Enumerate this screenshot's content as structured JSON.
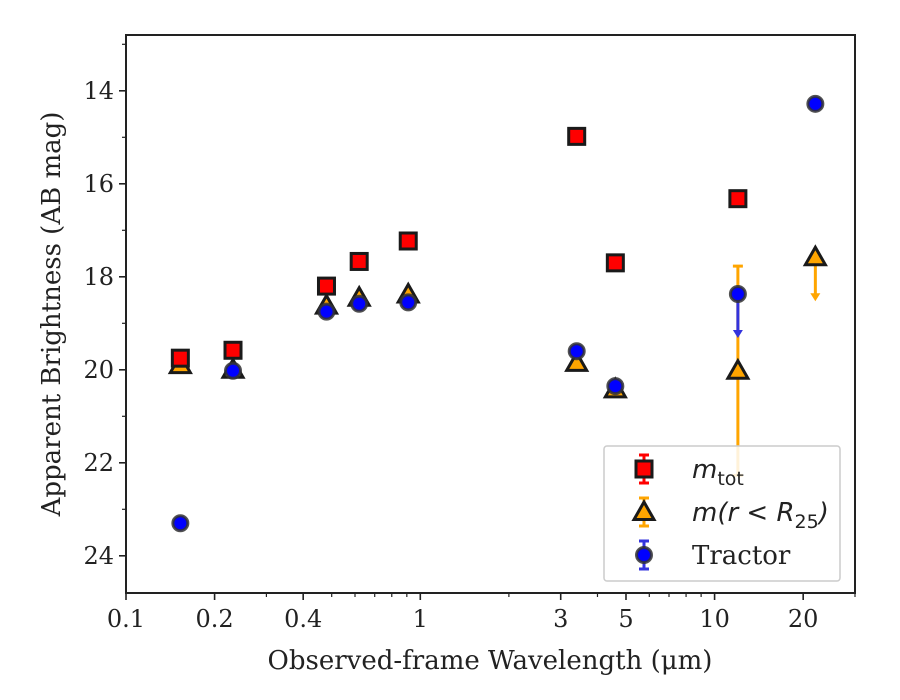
{
  "chart_data": {
    "type": "scatter",
    "title": "",
    "xlabel": "Observed-frame Wavelength (μm)",
    "ylabel": "Apparent Brightness (AB mag)",
    "xscale": "log",
    "xlim": [
      0.1,
      30
    ],
    "ylim": [
      24.8,
      12.8
    ],
    "y_inverted": true,
    "x_ticks": [
      0.1,
      0.2,
      0.4,
      1,
      3,
      5,
      10,
      20
    ],
    "x_tick_labels": [
      "0.1",
      "0.2",
      "0.4",
      "1",
      "3",
      "5",
      "10",
      "20"
    ],
    "y_ticks": [
      14,
      16,
      18,
      20,
      22,
      24
    ],
    "y_tick_labels": [
      "14",
      "16",
      "18",
      "20",
      "22",
      "24"
    ],
    "grid": false,
    "legend_placement": "lower-right",
    "legend_entries": [
      "m_tot",
      "m(r < R25)",
      "Tractor"
    ],
    "series": [
      {
        "name": "m_tot",
        "marker": "square",
        "color": "#ff0000",
        "edge_color": "#1a1a1a",
        "errbar_color": "#ff0000",
        "points": [
          {
            "x": 0.153,
            "y": 19.75
          },
          {
            "x": 0.231,
            "y": 19.58
          },
          {
            "x": 0.48,
            "y": 18.2
          },
          {
            "x": 0.62,
            "y": 17.67
          },
          {
            "x": 0.91,
            "y": 17.23
          },
          {
            "x": 3.4,
            "y": 14.98
          },
          {
            "x": 4.6,
            "y": 17.7
          },
          {
            "x": 12.0,
            "y": 16.32
          }
        ]
      },
      {
        "name": "m(r < R25)",
        "marker": "triangle",
        "color": "#ffa500",
        "edge_color": "#1a1a1a",
        "errbar_color": "#ffa500",
        "points": [
          {
            "x": 0.153,
            "y": 19.9
          },
          {
            "x": 0.231,
            "y": 20.0
          },
          {
            "x": 0.48,
            "y": 18.62
          },
          {
            "x": 0.62,
            "y": 18.45
          },
          {
            "x": 0.91,
            "y": 18.38
          },
          {
            "x": 3.4,
            "y": 19.85
          },
          {
            "x": 4.6,
            "y": 20.42
          },
          {
            "x": 12.0,
            "y": 20.02,
            "yerr": [
              2.25,
              2.25
            ]
          },
          {
            "x": 22.0,
            "y": 17.58,
            "upper_limit": true
          }
        ]
      },
      {
        "name": "Tractor",
        "marker": "circle",
        "color": "#0000ff",
        "edge_color": "#333333",
        "errbar_color": "#0000ff",
        "points": [
          {
            "x": 0.153,
            "y": 23.3
          },
          {
            "x": 0.231,
            "y": 20.02
          },
          {
            "x": 0.48,
            "y": 18.75
          },
          {
            "x": 0.62,
            "y": 18.58
          },
          {
            "x": 0.91,
            "y": 18.55
          },
          {
            "x": 3.4,
            "y": 19.6
          },
          {
            "x": 4.6,
            "y": 20.35
          },
          {
            "x": 12.0,
            "y": 18.37,
            "upper_limit": true
          },
          {
            "x": 22.0,
            "y": 14.28
          }
        ]
      }
    ]
  },
  "colors": {
    "frame": "#222222",
    "errbar_top": "#ffa500",
    "errbar_tractor": "#3333dd"
  }
}
